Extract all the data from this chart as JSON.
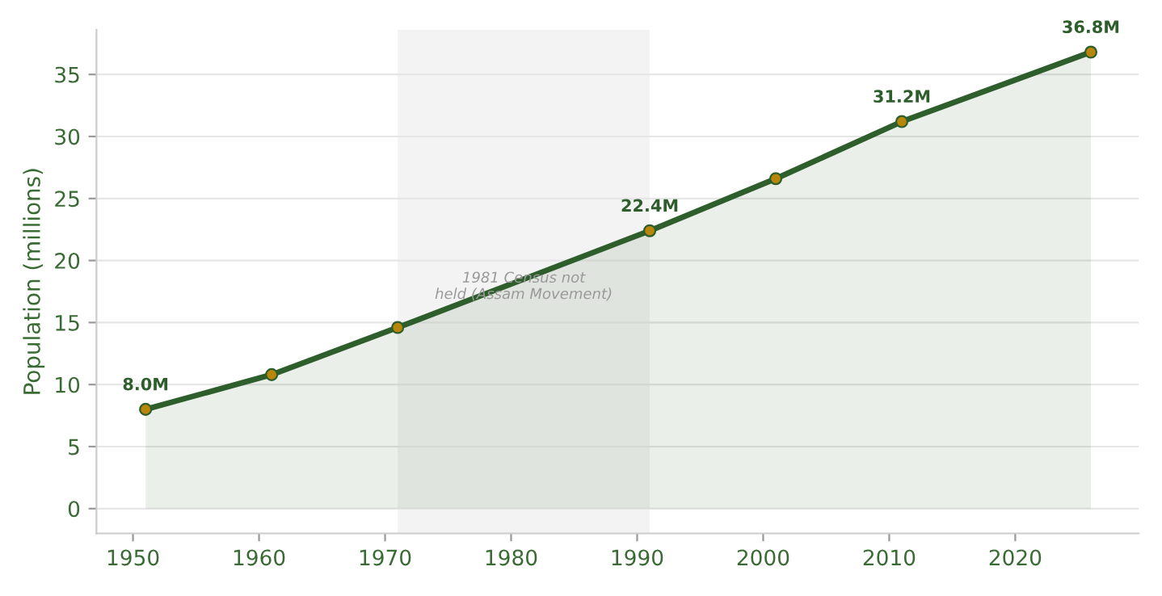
{
  "chart_data": {
    "type": "area",
    "ylabel": "Population (millions)",
    "x": [
      1951,
      1961,
      1971,
      1991,
      2001,
      2011,
      2026
    ],
    "series": [
      {
        "color": "#2e5e2b",
        "values": [
          8.0,
          10.8,
          14.6,
          22.4,
          26.6,
          31.2,
          36.8
        ],
        "value_labels": [
          "8.0M",
          null,
          null,
          "22.4M",
          null,
          "31.2M",
          "36.8M"
        ]
      }
    ],
    "xlim": [
      1947.1,
      2029.8
    ],
    "ylim": [
      -2,
      38.6
    ],
    "xticks": [
      1950,
      1960,
      1970,
      1980,
      1990,
      2000,
      2010,
      2020
    ],
    "yticks": [
      0,
      5,
      10,
      15,
      20,
      25,
      30,
      35
    ],
    "bands": [
      {
        "axis": "x",
        "from": 1971,
        "to": 1991,
        "label": "1981 Census not\nheld (Assam Movement)",
        "color": "#ebebeb"
      }
    ],
    "grid": "y",
    "marker": "circle"
  }
}
